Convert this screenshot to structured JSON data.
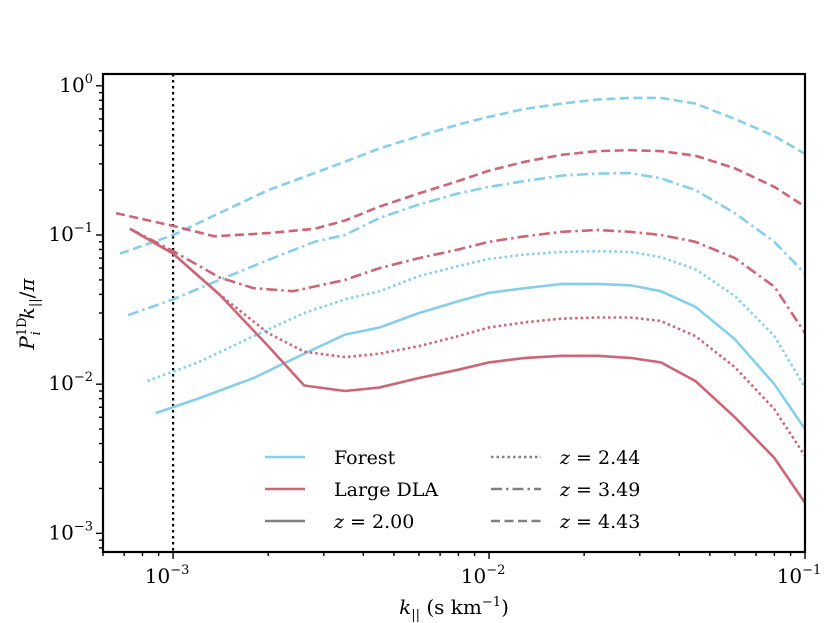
{
  "chart_data": {
    "type": "line",
    "xscale": "log",
    "yscale": "log",
    "xlim": [
      0.0006,
      0.1
    ],
    "ylim": [
      0.00075,
      1.2
    ],
    "xlabel": "k_{||} (s km^{-1})",
    "ylabel": "P_i^{1D} k_{||} / π",
    "xticks": [
      {
        "value": 0.001,
        "base": "10",
        "exp": "−3"
      },
      {
        "value": 0.01,
        "base": "10",
        "exp": "−2"
      },
      {
        "value": 0.1,
        "base": "10",
        "exp": "−1"
      }
    ],
    "yticks": [
      {
        "value": 0.001,
        "base": "10",
        "exp": "−3"
      },
      {
        "value": 0.01,
        "base": "10",
        "exp": "−2"
      },
      {
        "value": 0.1,
        "base": "10",
        "exp": "−1"
      },
      {
        "value": 1,
        "base": "10",
        "exp": "0"
      }
    ],
    "vline": {
      "x": 0.001,
      "style": "dotted",
      "color": "#000000"
    },
    "colors": {
      "forest": "#87ceeb",
      "dla": "#cc6677",
      "neutral": "#808080"
    },
    "series": [
      {
        "name": "Forest z=2.00",
        "kind": "forest",
        "style": "solid",
        "x": [
          0.00088,
          0.0012,
          0.0018,
          0.0026,
          0.0035,
          0.0045,
          0.006,
          0.008,
          0.01,
          0.013,
          0.017,
          0.022,
          0.028,
          0.035,
          0.045,
          0.06,
          0.08,
          0.1
        ],
        "y": [
          0.0064,
          0.008,
          0.011,
          0.016,
          0.0215,
          0.024,
          0.03,
          0.036,
          0.041,
          0.044,
          0.047,
          0.047,
          0.046,
          0.042,
          0.033,
          0.02,
          0.01,
          0.005
        ]
      },
      {
        "name": "Forest z=2.44",
        "kind": "forest",
        "style": "dotted",
        "x": [
          0.00083,
          0.0012,
          0.0018,
          0.0026,
          0.0035,
          0.0045,
          0.006,
          0.008,
          0.01,
          0.013,
          0.017,
          0.022,
          0.028,
          0.035,
          0.045,
          0.06,
          0.08,
          0.1
        ],
        "y": [
          0.0105,
          0.014,
          0.021,
          0.03,
          0.037,
          0.042,
          0.053,
          0.062,
          0.069,
          0.074,
          0.077,
          0.078,
          0.077,
          0.071,
          0.059,
          0.039,
          0.021,
          0.0095
        ]
      },
      {
        "name": "Forest z=3.49",
        "kind": "forest",
        "style": "dashdot",
        "x": [
          0.00072,
          0.001,
          0.0014,
          0.002,
          0.0028,
          0.0035,
          0.0045,
          0.006,
          0.008,
          0.01,
          0.013,
          0.017,
          0.022,
          0.028,
          0.035,
          0.045,
          0.06,
          0.08,
          0.1
        ],
        "y": [
          0.029,
          0.037,
          0.05,
          0.068,
          0.09,
          0.1,
          0.13,
          0.16,
          0.19,
          0.21,
          0.23,
          0.25,
          0.258,
          0.26,
          0.24,
          0.2,
          0.14,
          0.09,
          0.055
        ]
      },
      {
        "name": "Forest z=4.43",
        "kind": "forest",
        "style": "dashed",
        "x": [
          0.00068,
          0.001,
          0.0014,
          0.002,
          0.0028,
          0.0035,
          0.0045,
          0.006,
          0.008,
          0.01,
          0.013,
          0.017,
          0.022,
          0.028,
          0.035,
          0.045,
          0.06,
          0.08,
          0.1
        ],
        "y": [
          0.075,
          0.1,
          0.14,
          0.2,
          0.26,
          0.31,
          0.38,
          0.46,
          0.55,
          0.62,
          0.7,
          0.76,
          0.81,
          0.83,
          0.83,
          0.76,
          0.6,
          0.46,
          0.35
        ]
      },
      {
        "name": "Large DLA z=2.00",
        "kind": "dla",
        "style": "solid",
        "x": [
          0.00073,
          0.001,
          0.0014,
          0.002,
          0.0026,
          0.0035,
          0.0045,
          0.006,
          0.008,
          0.01,
          0.013,
          0.017,
          0.022,
          0.028,
          0.035,
          0.045,
          0.06,
          0.08,
          0.1
        ],
        "y": [
          0.11,
          0.075,
          0.04,
          0.018,
          0.0098,
          0.009,
          0.0095,
          0.011,
          0.0125,
          0.014,
          0.015,
          0.0155,
          0.0155,
          0.015,
          0.014,
          0.0105,
          0.006,
          0.0032,
          0.0016
        ]
      },
      {
        "name": "Large DLA z=2.44",
        "kind": "dla",
        "style": "dotted",
        "x": [
          0.00073,
          0.001,
          0.0014,
          0.002,
          0.0026,
          0.0035,
          0.0045,
          0.006,
          0.008,
          0.01,
          0.013,
          0.017,
          0.022,
          0.028,
          0.035,
          0.045,
          0.06,
          0.08,
          0.1
        ],
        "y": [
          0.11,
          0.075,
          0.04,
          0.022,
          0.0165,
          0.0152,
          0.016,
          0.018,
          0.021,
          0.024,
          0.026,
          0.0275,
          0.028,
          0.028,
          0.0265,
          0.021,
          0.013,
          0.0068,
          0.0033
        ]
      },
      {
        "name": "Large DLA z=3.49",
        "kind": "dla",
        "style": "dashdot",
        "x": [
          0.00073,
          0.001,
          0.0014,
          0.0018,
          0.0024,
          0.0035,
          0.0045,
          0.006,
          0.008,
          0.01,
          0.013,
          0.017,
          0.022,
          0.028,
          0.035,
          0.045,
          0.06,
          0.08,
          0.1
        ],
        "y": [
          0.11,
          0.078,
          0.052,
          0.044,
          0.042,
          0.05,
          0.06,
          0.07,
          0.08,
          0.09,
          0.098,
          0.105,
          0.108,
          0.105,
          0.1,
          0.09,
          0.07,
          0.045,
          0.022
        ]
      },
      {
        "name": "Large DLA z=4.43",
        "kind": "dla",
        "style": "dashed",
        "x": [
          0.00066,
          0.001,
          0.00135,
          0.002,
          0.0028,
          0.0035,
          0.0045,
          0.006,
          0.008,
          0.01,
          0.013,
          0.017,
          0.022,
          0.028,
          0.035,
          0.045,
          0.06,
          0.08,
          0.1
        ],
        "y": [
          0.14,
          0.115,
          0.098,
          0.103,
          0.11,
          0.125,
          0.155,
          0.19,
          0.23,
          0.27,
          0.31,
          0.345,
          0.365,
          0.37,
          0.365,
          0.34,
          0.28,
          0.21,
          0.155
        ]
      }
    ],
    "legend": {
      "placement": "lower-center",
      "entries": [
        {
          "label": "Forest",
          "kind": "forest",
          "style": "solid"
        },
        {
          "label": "Large DLA",
          "kind": "dla",
          "style": "solid"
        },
        {
          "label": "z = 2.00",
          "kind": "neutral",
          "style": "solid"
        },
        {
          "label": "z = 2.44",
          "kind": "neutral",
          "style": "dotted"
        },
        {
          "label": "z = 3.49",
          "kind": "neutral",
          "style": "dashdot"
        },
        {
          "label": "z = 4.43",
          "kind": "neutral",
          "style": "dashed"
        }
      ]
    }
  }
}
